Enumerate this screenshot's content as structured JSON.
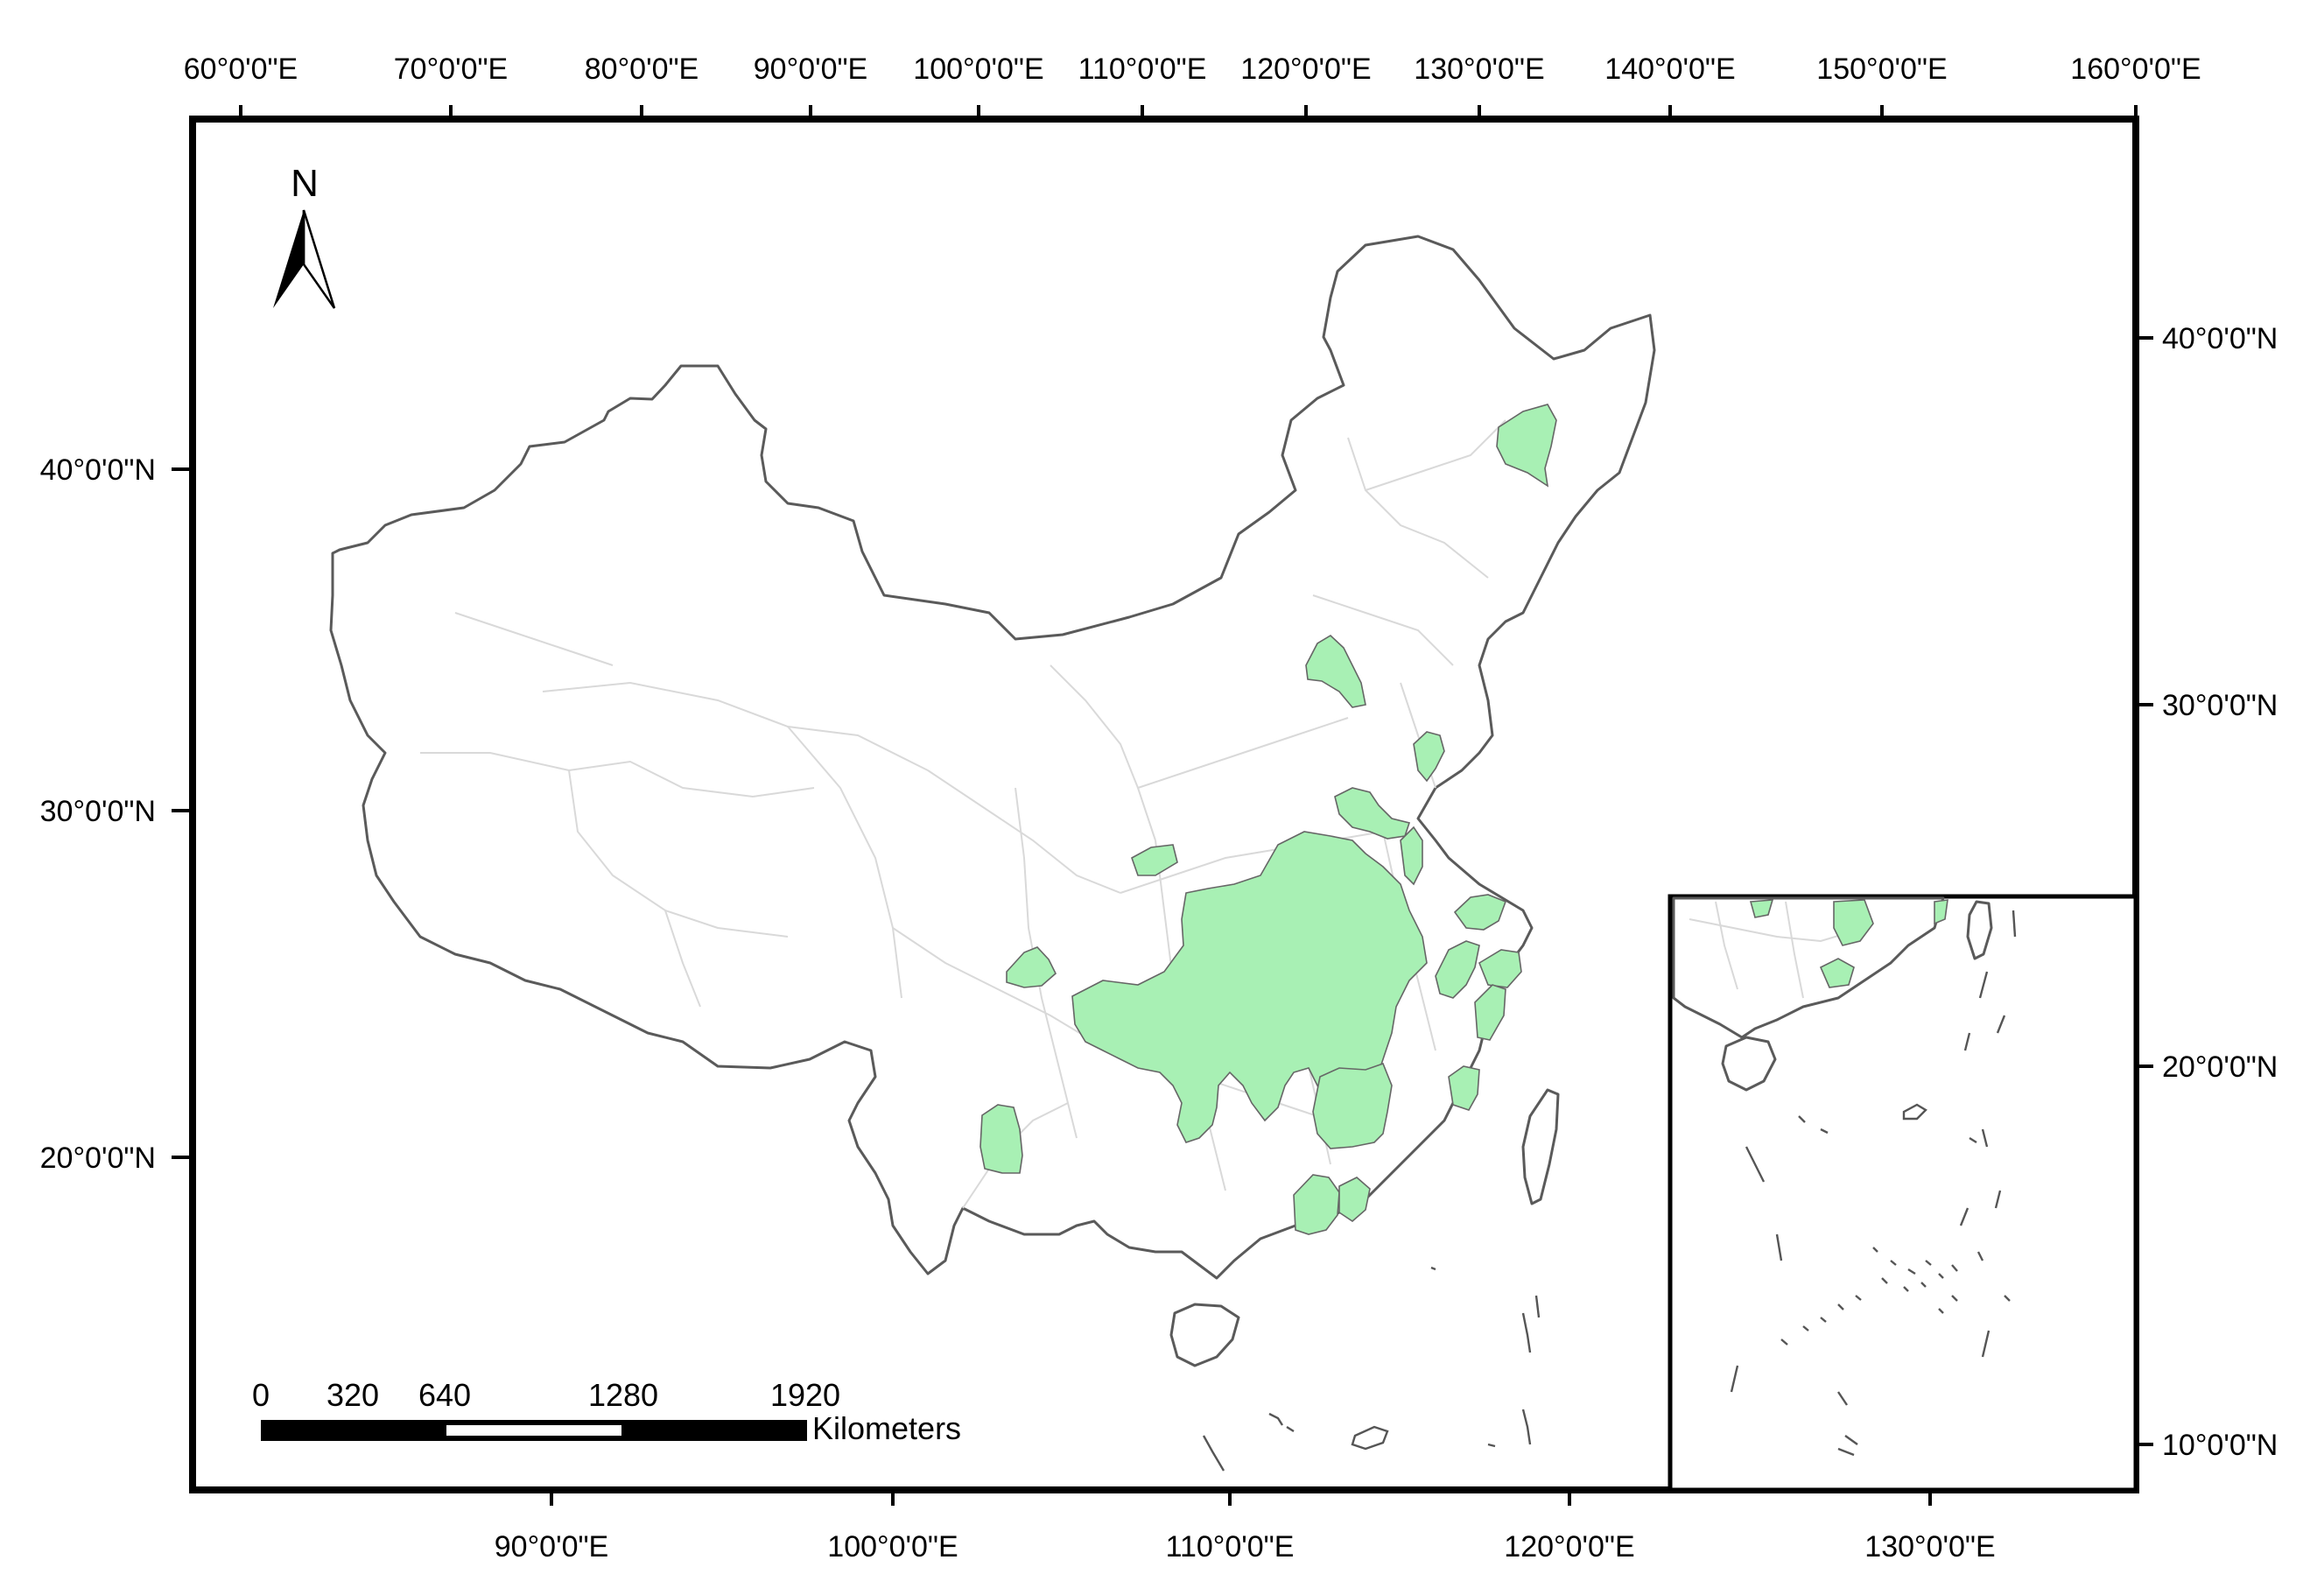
{
  "map": {
    "top_axis_labels": [
      "60°0'0\"E",
      "70°0'0\"E",
      "80°0'0\"E",
      "90°0'0\"E",
      "100°0'0\"E",
      "110°0'0\"E",
      "120°0'0\"E",
      "130°0'0\"E",
      "140°0'0\"E",
      "150°0'0\"E",
      "160°0'0\"E"
    ],
    "bottom_axis_labels": [
      "90°0'0\"E",
      "100°0'0\"E",
      "110°0'0\"E",
      "120°0'0\"E",
      "130°0'0\"E"
    ],
    "left_axis_labels": [
      "40°0'0\"N",
      "30°0'0\"N",
      "20°0'0\"N"
    ],
    "right_axis_labels": [
      "40°0'0\"N",
      "30°0'0\"N",
      "20°0'0\"N",
      "10°0'0\"N"
    ],
    "north_arrow": {
      "label": "N",
      "icon": "north-arrow-icon"
    },
    "scale_bar": {
      "ticks": [
        "0",
        "320",
        "640",
        "1280",
        "1920"
      ],
      "unit": "Kilometers"
    },
    "colors": {
      "highlight_fill": "#a8f0b4",
      "outline": "#5a5a5a",
      "internal_borders": "#d9d9d9",
      "frame": "#000000"
    }
  }
}
